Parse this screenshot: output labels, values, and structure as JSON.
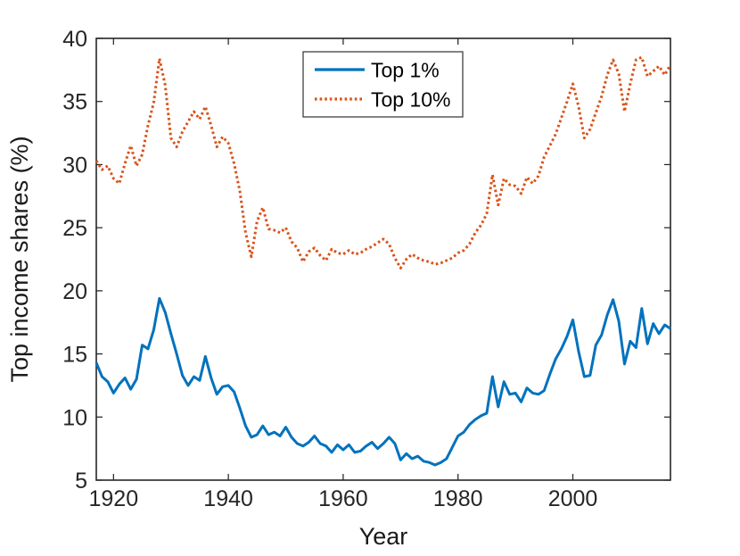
{
  "figure": {
    "background": "#ffffff",
    "axis_color": "#262626"
  },
  "chart_data": {
    "type": "line",
    "title": "",
    "xlabel": "Year",
    "ylabel": "Top income shares (%)",
    "xlim": [
      1917,
      2017
    ],
    "ylim": [
      5,
      40
    ],
    "xticks": [
      1920,
      1940,
      1960,
      1980,
      2000
    ],
    "yticks": [
      5,
      10,
      15,
      20,
      25,
      30,
      35,
      40
    ],
    "grid": false,
    "legend_position": "top-center-inside",
    "x_start_year": 1917,
    "x_end_year": 2017,
    "series": [
      {
        "name": "Top 1%",
        "color": "#0072BD",
        "linestyle": "solid",
        "values": [
          14.3,
          13.2,
          12.8,
          11.9,
          12.6,
          13.1,
          12.2,
          13.0,
          15.7,
          15.4,
          16.9,
          19.4,
          18.3,
          16.6,
          15.0,
          13.3,
          12.5,
          13.2,
          12.9,
          14.8,
          13.1,
          11.8,
          12.4,
          12.5,
          12.0,
          10.7,
          9.3,
          8.4,
          8.6,
          9.3,
          8.6,
          8.8,
          8.5,
          9.2,
          8.4,
          7.9,
          7.7,
          8.0,
          8.5,
          7.9,
          7.7,
          7.2,
          7.8,
          7.4,
          7.8,
          7.2,
          7.3,
          7.7,
          8.0,
          7.5,
          7.9,
          8.4,
          7.9,
          6.6,
          7.1,
          6.7,
          6.9,
          6.5,
          6.4,
          6.2,
          6.4,
          6.7,
          7.6,
          8.5,
          8.8,
          9.4,
          9.8,
          10.1,
          10.3,
          13.2,
          10.8,
          12.8,
          11.8,
          11.9,
          11.2,
          12.3,
          11.9,
          11.8,
          12.1,
          13.4,
          14.6,
          15.4,
          16.4,
          17.7,
          15.2,
          13.2,
          13.3,
          15.7,
          16.5,
          18.1,
          19.3,
          17.6,
          14.2,
          16.0,
          15.5,
          18.6,
          15.8,
          17.4,
          16.6,
          17.3,
          17.0
        ]
      },
      {
        "name": "Top 10%",
        "color": "#D95319",
        "linestyle": "dotted",
        "values": [
          30.3,
          29.6,
          29.9,
          28.9,
          28.5,
          30.1,
          31.5,
          29.9,
          30.8,
          33.1,
          34.9,
          38.4,
          36.3,
          32.1,
          31.4,
          32.6,
          33.4,
          34.2,
          33.6,
          34.6,
          33.1,
          31.4,
          32.2,
          31.7,
          30.1,
          27.9,
          24.6,
          22.7,
          25.5,
          26.6,
          24.9,
          24.8,
          24.6,
          25.0,
          23.9,
          23.4,
          22.3,
          23.1,
          23.4,
          22.8,
          22.4,
          23.3,
          23.0,
          22.9,
          23.2,
          22.9,
          23.0,
          23.3,
          23.5,
          23.8,
          24.1,
          23.7,
          22.6,
          21.8,
          22.5,
          22.9,
          22.6,
          22.4,
          22.3,
          22.1,
          22.2,
          22.4,
          22.6,
          23.0,
          23.2,
          23.7,
          24.6,
          25.2,
          26.1,
          29.2,
          26.8,
          28.9,
          28.4,
          28.3,
          27.7,
          29.0,
          28.5,
          29.1,
          30.6,
          31.5,
          32.4,
          33.7,
          35.0,
          36.4,
          34.6,
          32.1,
          32.8,
          34.1,
          35.4,
          37.1,
          38.3,
          37.2,
          34.2,
          36.4,
          38.3,
          38.5,
          37.0,
          37.4,
          37.8,
          37.1,
          37.9
        ]
      }
    ],
    "legend": {
      "entries": [
        "Top 1%",
        "Top 10%"
      ]
    }
  }
}
